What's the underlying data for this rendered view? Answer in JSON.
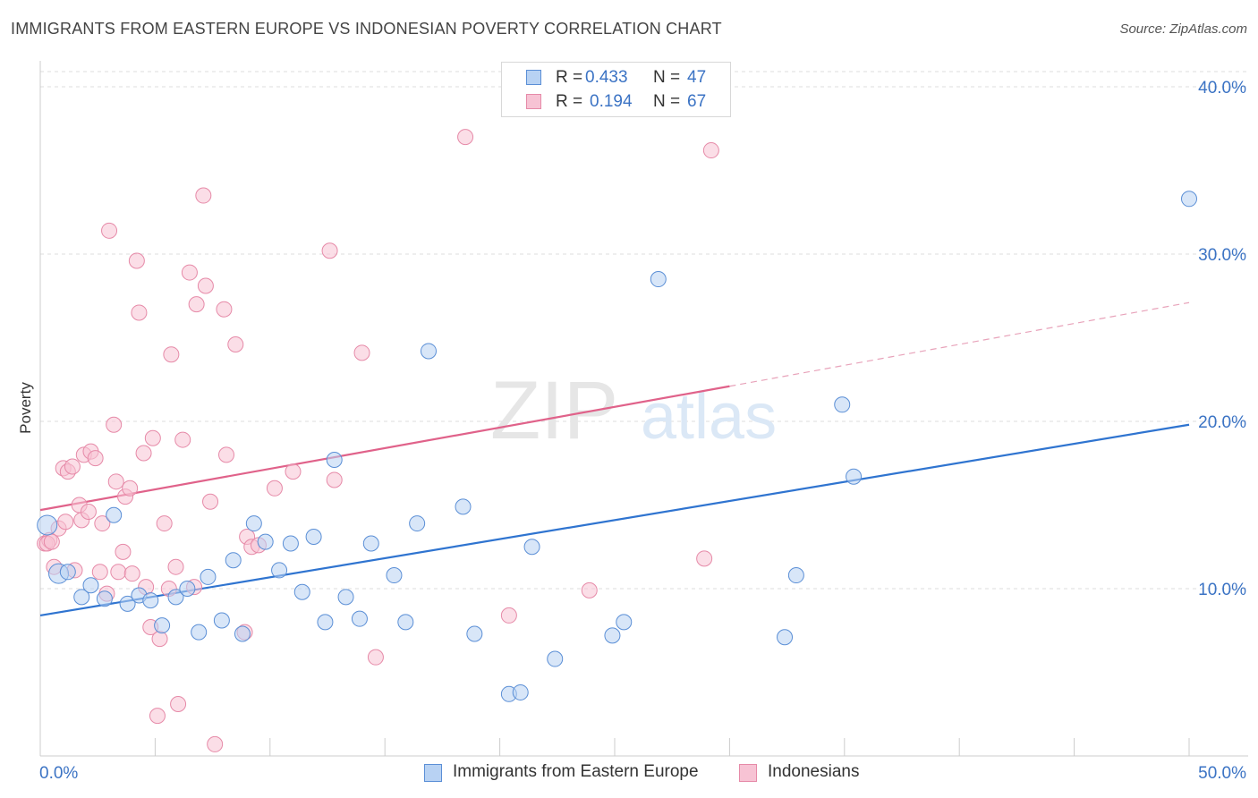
{
  "title": "IMMIGRANTS FROM EASTERN EUROPE VS INDONESIAN POVERTY CORRELATION CHART",
  "source": "Source: ZipAtlas.com",
  "watermark": {
    "zip": "ZIP",
    "atlas": "atlas"
  },
  "legend": [
    {
      "r_label": "R =",
      "r_value": "0.433",
      "n_label": "N =",
      "n_value": "47"
    },
    {
      "r_label": "R =",
      "r_value": "0.194",
      "n_label": "N =",
      "n_value": "67"
    }
  ],
  "chart_data": {
    "type": "scatter",
    "title": "IMMIGRANTS FROM EASTERN EUROPE VS INDONESIAN POVERTY CORRELATION CHART",
    "xlabel": "",
    "ylabel": "Poverty",
    "xlim": [
      0,
      50
    ],
    "ylim": [
      0,
      40
    ],
    "x_tick_labels": [
      "0.0%",
      "50.0%"
    ],
    "y_ticks": [
      10,
      20,
      30,
      40
    ],
    "y_tick_labels": [
      "10.0%",
      "20.0%",
      "30.0%",
      "40.0%"
    ],
    "grid": true,
    "legend_placement": "top-center",
    "series": [
      {
        "name": "Immigrants from Eastern Europe",
        "color": "#5b8fd6",
        "fill": "#b8d2f3",
        "trend": {
          "x": [
            0,
            50
          ],
          "y": [
            8.4,
            19.8
          ],
          "color": "#2f74d0"
        },
        "points": [
          [
            0.3,
            13.8
          ],
          [
            0.8,
            10.9
          ],
          [
            1.2,
            11.0
          ],
          [
            1.8,
            9.5
          ],
          [
            2.2,
            10.2
          ],
          [
            2.8,
            9.4
          ],
          [
            3.2,
            14.4
          ],
          [
            3.8,
            9.1
          ],
          [
            4.3,
            9.6
          ],
          [
            4.8,
            9.3
          ],
          [
            5.3,
            7.8
          ],
          [
            5.9,
            9.5
          ],
          [
            6.4,
            10.0
          ],
          [
            6.9,
            7.4
          ],
          [
            7.3,
            10.7
          ],
          [
            7.9,
            8.1
          ],
          [
            8.4,
            11.7
          ],
          [
            8.8,
            7.3
          ],
          [
            9.3,
            13.9
          ],
          [
            9.8,
            12.8
          ],
          [
            10.4,
            11.1
          ],
          [
            10.9,
            12.7
          ],
          [
            11.4,
            9.8
          ],
          [
            11.9,
            13.1
          ],
          [
            12.4,
            8.0
          ],
          [
            12.8,
            17.7
          ],
          [
            13.3,
            9.5
          ],
          [
            13.9,
            8.2
          ],
          [
            14.4,
            12.7
          ],
          [
            15.4,
            10.8
          ],
          [
            15.9,
            8.0
          ],
          [
            16.4,
            13.9
          ],
          [
            16.9,
            24.2
          ],
          [
            18.4,
            14.9
          ],
          [
            18.9,
            7.3
          ],
          [
            20.4,
            3.7
          ],
          [
            20.9,
            3.8
          ],
          [
            21.4,
            12.5
          ],
          [
            22.4,
            5.8
          ],
          [
            24.9,
            7.2
          ],
          [
            25.4,
            8.0
          ],
          [
            26.9,
            28.5
          ],
          [
            32.4,
            7.1
          ],
          [
            32.9,
            10.8
          ],
          [
            34.9,
            21.0
          ],
          [
            35.4,
            16.7
          ],
          [
            50.0,
            33.3
          ]
        ]
      },
      {
        "name": "Indonesians",
        "color": "#e68aa8",
        "fill": "#f7c3d4",
        "trend": {
          "x": [
            0,
            30
          ],
          "y": [
            14.7,
            22.1
          ],
          "color": "#e0628a"
        },
        "trend_extension": {
          "x": [
            30,
            50
          ],
          "y": [
            22.1,
            27.1
          ],
          "color": "#e8a3ba"
        },
        "points": [
          [
            0.2,
            12.7
          ],
          [
            0.4,
            12.9
          ],
          [
            0.6,
            11.3
          ],
          [
            0.8,
            13.6
          ],
          [
            1.0,
            17.2
          ],
          [
            1.1,
            14.0
          ],
          [
            1.2,
            17.0
          ],
          [
            1.4,
            17.3
          ],
          [
            1.5,
            11.1
          ],
          [
            1.7,
            15.0
          ],
          [
            1.8,
            14.1
          ],
          [
            1.9,
            18.0
          ],
          [
            2.1,
            14.6
          ],
          [
            2.2,
            18.2
          ],
          [
            2.4,
            17.8
          ],
          [
            2.6,
            11.0
          ],
          [
            2.7,
            13.9
          ],
          [
            2.9,
            9.7
          ],
          [
            3.0,
            31.4
          ],
          [
            3.2,
            19.8
          ],
          [
            3.3,
            16.4
          ],
          [
            3.4,
            11.0
          ],
          [
            3.6,
            12.2
          ],
          [
            3.7,
            15.5
          ],
          [
            3.9,
            16.0
          ],
          [
            4.0,
            10.9
          ],
          [
            4.2,
            29.6
          ],
          [
            4.3,
            26.5
          ],
          [
            4.5,
            18.1
          ],
          [
            4.6,
            10.1
          ],
          [
            4.8,
            7.7
          ],
          [
            4.9,
            19.0
          ],
          [
            5.1,
            2.4
          ],
          [
            5.2,
            7.0
          ],
          [
            5.4,
            13.9
          ],
          [
            5.6,
            10.0
          ],
          [
            5.7,
            24.0
          ],
          [
            5.9,
            11.3
          ],
          [
            6.0,
            3.1
          ],
          [
            6.2,
            18.9
          ],
          [
            6.5,
            28.9
          ],
          [
            6.7,
            10.1
          ],
          [
            6.8,
            27.0
          ],
          [
            7.1,
            33.5
          ],
          [
            7.2,
            28.1
          ],
          [
            7.4,
            15.2
          ],
          [
            7.6,
            0.7
          ],
          [
            8.0,
            26.7
          ],
          [
            8.1,
            18.0
          ],
          [
            8.5,
            24.6
          ],
          [
            8.9,
            7.4
          ],
          [
            9.0,
            13.1
          ],
          [
            9.2,
            12.5
          ],
          [
            9.5,
            12.6
          ],
          [
            10.2,
            16.0
          ],
          [
            11.0,
            17.0
          ],
          [
            12.6,
            30.2
          ],
          [
            12.8,
            16.5
          ],
          [
            14.0,
            24.1
          ],
          [
            14.6,
            5.9
          ],
          [
            18.5,
            37.0
          ],
          [
            20.4,
            8.4
          ],
          [
            23.9,
            9.9
          ],
          [
            28.9,
            11.8
          ],
          [
            29.2,
            36.2
          ],
          [
            0.3,
            12.7
          ],
          [
            0.5,
            12.8
          ]
        ]
      }
    ]
  }
}
